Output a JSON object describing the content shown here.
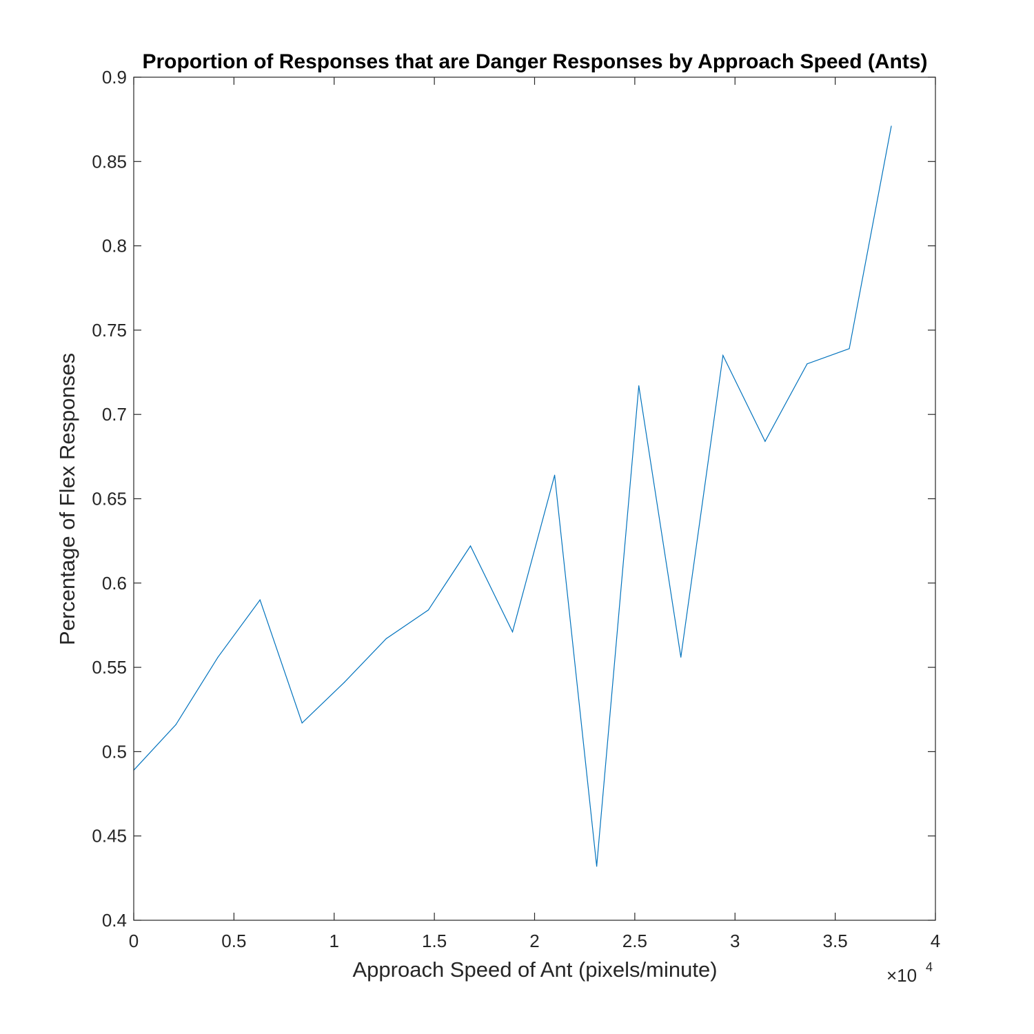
{
  "chart_data": {
    "type": "line",
    "title": "Proportion of Responses that are Danger Responses by Approach Speed (Ants)",
    "xlabel": "Approach Speed of Ant (pixels/minute)",
    "ylabel": "Percentage of Flex Responses",
    "x_exponent_label": {
      "base": "×10",
      "power": "4"
    },
    "xlim": [
      0,
      4
    ],
    "ylim": [
      0.4,
      0.9
    ],
    "x_ticks": [
      0,
      0.5,
      1,
      1.5,
      2,
      2.5,
      3,
      3.5,
      4
    ],
    "x_tick_labels": [
      "0",
      "0.5",
      "1",
      "1.5",
      "2",
      "2.5",
      "3",
      "3.5",
      "4"
    ],
    "y_ticks": [
      0.4,
      0.45,
      0.5,
      0.55,
      0.6,
      0.65,
      0.7,
      0.75,
      0.8,
      0.85,
      0.9
    ],
    "y_tick_labels": [
      "0.4",
      "0.45",
      "0.5",
      "0.55",
      "0.6",
      "0.65",
      "0.7",
      "0.75",
      "0.8",
      "0.85",
      "0.9"
    ],
    "grid": false,
    "series": [
      {
        "color": "#0072BD",
        "x": [
          0.0,
          0.21,
          0.42,
          0.63,
          0.84,
          1.05,
          1.26,
          1.47,
          1.68,
          1.89,
          2.1,
          2.31,
          2.52,
          2.73,
          2.94,
          3.15,
          3.36,
          3.57,
          3.78
        ],
        "y": [
          0.489,
          0.516,
          0.556,
          0.59,
          0.517,
          0.541,
          0.567,
          0.584,
          0.622,
          0.571,
          0.664,
          0.432,
          0.717,
          0.556,
          0.735,
          0.684,
          0.73,
          0.739,
          0.871
        ]
      }
    ]
  }
}
